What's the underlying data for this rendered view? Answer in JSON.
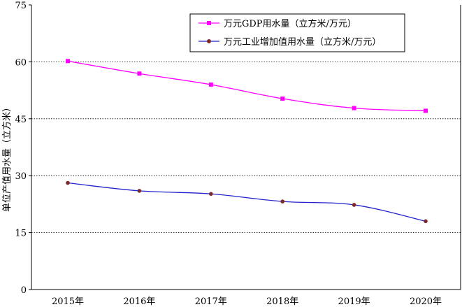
{
  "chart_data": {
    "type": "line",
    "title": "",
    "xlabel": "",
    "ylabel": "单位产值用水量（立方米）",
    "categories": [
      "2015年",
      "2016年",
      "2017年",
      "2018年",
      "2019年",
      "2020年"
    ],
    "ylim": [
      0,
      75
    ],
    "yticks": [
      0,
      15,
      30,
      45,
      60,
      75
    ],
    "grid": "horizontal dotted",
    "legend_position": "top-right",
    "series": [
      {
        "name": "万元GDP用水量（立方米/万元）",
        "color": "#ff00ff",
        "marker": "square",
        "values": [
          60.2,
          56.9,
          54.0,
          50.3,
          47.8,
          47.1
        ]
      },
      {
        "name": "万元工业增加值用水量（立方米/万元）",
        "color": "#2222cc",
        "marker_color": "#7a2a2a",
        "marker": "circle",
        "values": [
          28.1,
          26.0,
          25.2,
          23.2,
          22.3,
          18.0
        ]
      }
    ]
  }
}
